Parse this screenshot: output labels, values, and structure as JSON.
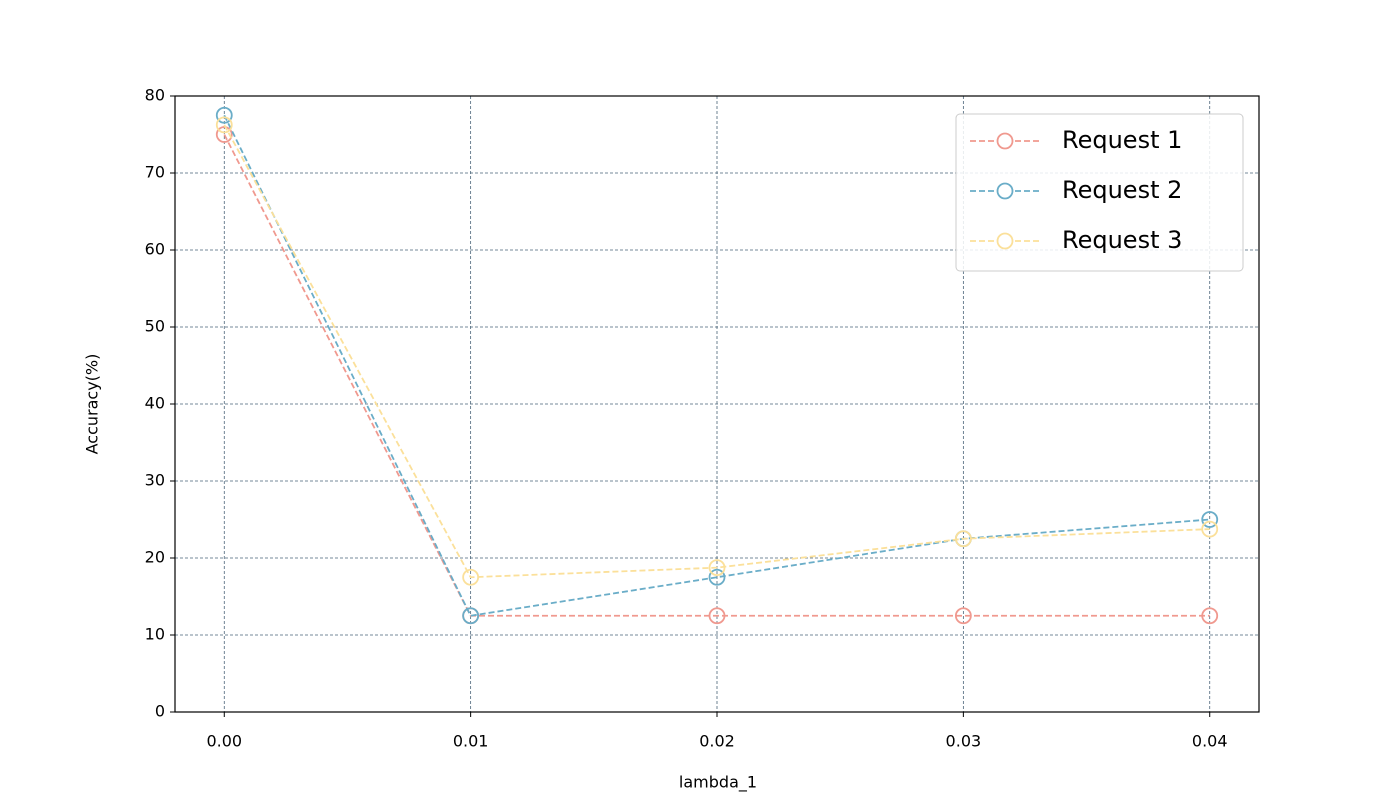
{
  "chart_data": {
    "type": "line",
    "x_label": "lambda_1",
    "y_label": "Accuracy(%)",
    "x": [
      0,
      0.01,
      0.02,
      0.03,
      0.04
    ],
    "series": [
      {
        "name": "Request 1",
        "color": "#f0998f",
        "values": [
          75,
          12.5,
          12.5,
          12.5,
          12.5
        ]
      },
      {
        "name": "Request 2",
        "color": "#6aadc8",
        "values": [
          77.5,
          12.5,
          17.5,
          22.5,
          25
        ]
      },
      {
        "name": "Request 3",
        "color": "#fbe09a",
        "values": [
          76.25,
          17.5,
          18.75,
          22.5,
          23.75
        ]
      }
    ],
    "xlim": [
      -0.002,
      0.042
    ],
    "xticks": [
      {
        "value": 0,
        "label": "0.00"
      },
      {
        "value": 0.01,
        "label": "0.01"
      },
      {
        "value": 0.02,
        "label": "0.02"
      },
      {
        "value": 0.03,
        "label": "0.03"
      },
      {
        "value": 0.04,
        "label": "0.04"
      }
    ],
    "ylim": [
      0,
      80
    ],
    "yticks": [
      0,
      10,
      20,
      30,
      40,
      50,
      60,
      70,
      80
    ],
    "grid": true,
    "legend": "upper right"
  }
}
